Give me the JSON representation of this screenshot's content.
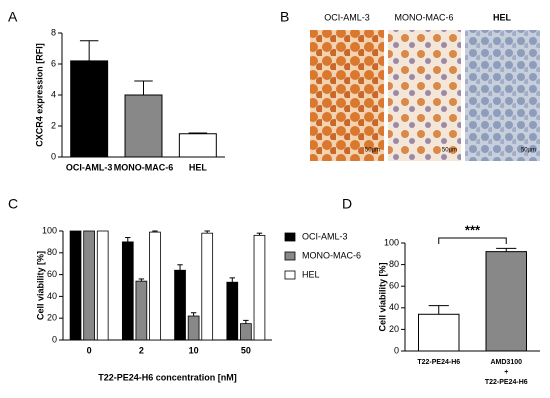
{
  "panel_labels": [
    "A",
    "B",
    "C",
    "D"
  ],
  "images": [
    {
      "label": "OCI-AML-3",
      "scale": "50µm"
    },
    {
      "label": "MONO-MAC-6",
      "scale": "50µm"
    },
    {
      "label": "HEL",
      "scale": "50µm"
    }
  ],
  "chart_data": [
    {
      "type": "bar",
      "y_label": "CXCR4 expression [RFI]",
      "categories": [
        "OCI-AML-3",
        "MONO-MAC-6",
        "HEL"
      ],
      "values": [
        6.2,
        4.0,
        1.5
      ],
      "errors": [
        1.3,
        0.9,
        0.05
      ],
      "colors": [
        "#000000",
        "#888888",
        "#ffffff"
      ],
      "ylim": [
        0,
        8
      ],
      "yticks": [
        0,
        2,
        4,
        6,
        8
      ]
    },
    {
      "type": "bar",
      "y_label": "Cell viability [%]",
      "x_label": "T22-PE24-H6 concentration [nM]",
      "categories": [
        "0",
        "2",
        "10",
        "50"
      ],
      "series": [
        {
          "name": "OCI-AML-3",
          "color": "#000000",
          "values": [
            100,
            90,
            64,
            53
          ],
          "errors": [
            0,
            4,
            5,
            4
          ]
        },
        {
          "name": "MONO-MAC-6",
          "color": "#888888",
          "values": [
            100,
            54,
            22,
            15
          ],
          "errors": [
            0,
            2,
            3,
            3
          ]
        },
        {
          "name": "HEL",
          "color": "#ffffff",
          "values": [
            100,
            99,
            98,
            96
          ],
          "errors": [
            0,
            1,
            2,
            2
          ]
        }
      ],
      "ylim": [
        0,
        100
      ],
      "yticks": [
        0,
        20,
        40,
        60,
        80,
        100
      ],
      "legend": "right"
    },
    {
      "type": "bar",
      "y_label": "Cell viability [%]",
      "categories": [
        "T22-PE24-H6",
        "AMD3100\n+\nT22-PE24-H6"
      ],
      "values": [
        34,
        92
      ],
      "errors": [
        8,
        3
      ],
      "colors": [
        "#ffffff",
        "#888888"
      ],
      "ylim": [
        0,
        100
      ],
      "yticks": [
        0,
        20,
        40,
        60,
        80,
        100
      ],
      "annotation": "***"
    }
  ]
}
